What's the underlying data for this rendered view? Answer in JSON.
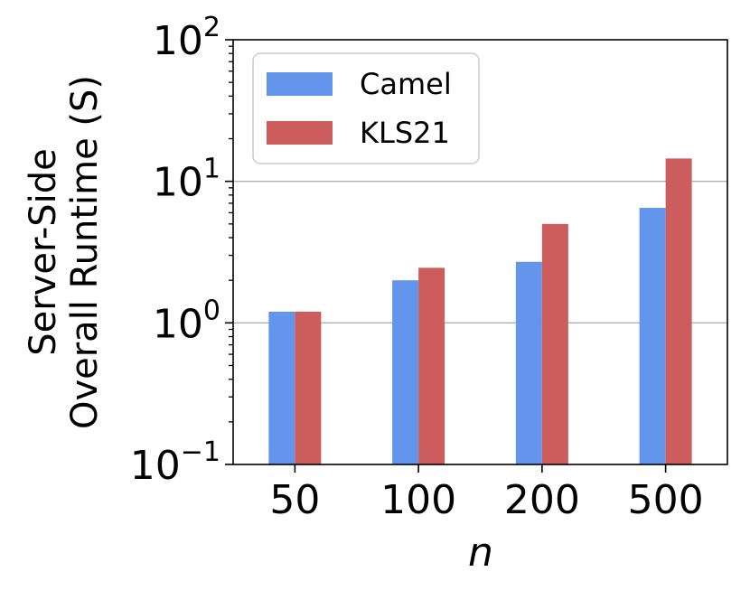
{
  "chart_data": {
    "type": "bar",
    "scale": "log",
    "categories": [
      "50",
      "100",
      "200",
      "500"
    ],
    "series": [
      {
        "name": "Camel",
        "color": "#6495ED",
        "values": [
          1.2,
          2.0,
          2.7,
          6.5
        ]
      },
      {
        "name": "KLS21",
        "color": "#CD5C5C",
        "values": [
          1.2,
          2.45,
          5.0,
          14.5
        ]
      }
    ],
    "xlabel": "n",
    "ylabel_lines": [
      "Server-Side",
      "Overall Runtime (S)"
    ],
    "ylim": [
      0.1,
      100
    ],
    "yticks": [
      {
        "value": 0.1,
        "base": "10",
        "exp": "−1"
      },
      {
        "value": 1,
        "base": "10",
        "exp": "0"
      },
      {
        "value": 10,
        "base": "10",
        "exp": "1"
      },
      {
        "value": 100,
        "base": "10",
        "exp": "2"
      }
    ],
    "grid": "horizontal major",
    "legend_position": "top-left"
  }
}
